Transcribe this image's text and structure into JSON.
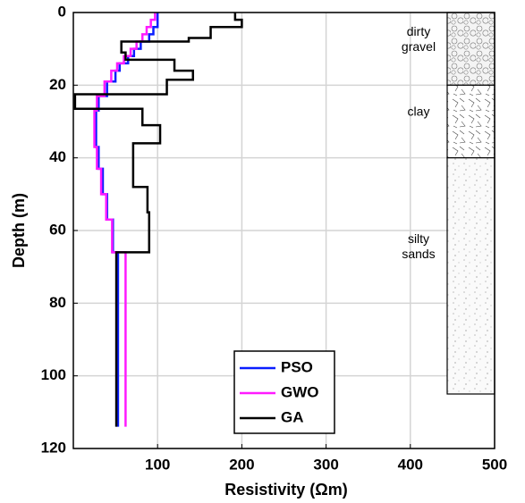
{
  "chart_data": {
    "type": "step-profile",
    "xlabel": "Resistivity (Ωm)",
    "ylabel": "Depth (m)",
    "xlim": [
      0,
      500
    ],
    "xticks": [
      100,
      200,
      300,
      400,
      500
    ],
    "ylim": [
      0,
      120
    ],
    "yticks": [
      0,
      20,
      40,
      60,
      80,
      100,
      120
    ],
    "y_inverted": true,
    "grid": true,
    "legend": "lower center",
    "series": [
      {
        "name": "PSO",
        "color": "#0a1eff",
        "x": [
          100,
          100,
          95,
          95,
          90,
          90,
          80,
          80,
          72,
          72,
          65,
          65,
          55,
          55,
          50,
          50,
          40,
          40,
          30,
          30,
          27,
          27,
          30,
          30,
          35,
          35,
          40,
          40,
          47,
          47,
          53,
          53
        ],
        "y": [
          0,
          4,
          4,
          6,
          6,
          8,
          8,
          10,
          10,
          12,
          12,
          14,
          14,
          16,
          16,
          19,
          19,
          23,
          23,
          27,
          27,
          37,
          37,
          43,
          43,
          50,
          50,
          57,
          57,
          66,
          66,
          114
        ]
      },
      {
        "name": "GWO",
        "color": "#ff1aff",
        "x": [
          97,
          97,
          92,
          92,
          87,
          87,
          82,
          82,
          75,
          75,
          68,
          68,
          60,
          60,
          52,
          52,
          45,
          45,
          37,
          37,
          28,
          28,
          25,
          25,
          28,
          28,
          33,
          33,
          39,
          39,
          46,
          46,
          62,
          62
        ],
        "y": [
          0,
          2,
          2,
          4,
          4,
          6,
          6,
          8,
          8,
          10,
          10,
          12,
          12,
          14,
          14,
          16,
          16,
          19,
          19,
          23,
          23,
          27,
          27,
          37,
          37,
          43,
          43,
          50,
          50,
          57,
          57,
          66,
          66,
          114
        ]
      },
      {
        "name": "GA",
        "color": "#000000",
        "x": [
          192,
          192,
          200,
          200,
          163,
          163,
          137,
          137,
          57,
          57,
          62,
          62,
          120,
          120,
          142,
          142,
          111,
          111,
          2,
          2,
          82,
          82,
          103,
          103,
          71,
          71,
          88,
          88,
          90,
          90,
          51,
          51
        ],
        "y": [
          0,
          2,
          2,
          4,
          4,
          7,
          7,
          8,
          8,
          11,
          11,
          13,
          13,
          16,
          16,
          18.5,
          18.5,
          22.5,
          22.5,
          26.5,
          26.5,
          31,
          31,
          36,
          36,
          48,
          48,
          55,
          55,
          66,
          66,
          114
        ]
      }
    ],
    "lithology": [
      {
        "label": [
          "dirty",
          "gravel"
        ],
        "top": 0,
        "bottom": 20
      },
      {
        "label": [
          "clay"
        ],
        "top": 20,
        "bottom": 40
      },
      {
        "label": [
          "silty",
          "sands"
        ],
        "top": 40,
        "bottom": 105
      }
    ]
  }
}
